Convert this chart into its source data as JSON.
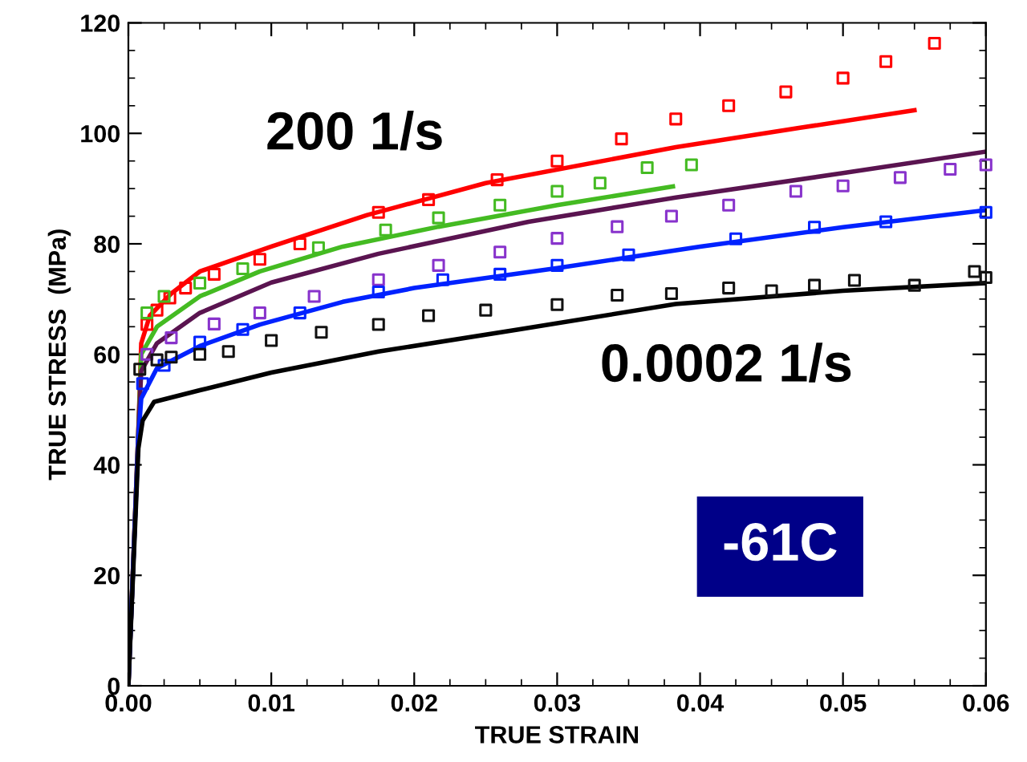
{
  "chart_data": {
    "type": "line",
    "xlabel": "TRUE STRAIN",
    "ylabel": "TRUE STRESS  (MPa)",
    "xlim": [
      0,
      0.06
    ],
    "ylim": [
      0,
      120
    ],
    "xticks": [
      {
        "value": 0,
        "label": "0.00"
      },
      {
        "value": 0.01,
        "label": "0.01"
      },
      {
        "value": 0.02,
        "label": "0.02"
      },
      {
        "value": 0.03,
        "label": "0.03"
      },
      {
        "value": 0.04,
        "label": "0.04"
      },
      {
        "value": 0.05,
        "label": "0.05"
      },
      {
        "value": 0.06,
        "label": "0.06"
      }
    ],
    "yticks": [
      0,
      20,
      40,
      60,
      80,
      100,
      120
    ],
    "grid": false,
    "legend": false,
    "annotations": [
      "200 1/s",
      "0.0002 1/s",
      "-61C"
    ],
    "series": [
      {
        "type": "scatter",
        "marker": "square",
        "color": "#ff0000",
        "x": [
          0.0013,
          0.002,
          0.0029,
          0.004,
          0.006,
          0.0092,
          0.012,
          0.0175,
          0.021,
          0.0258,
          0.03,
          0.0345,
          0.0383,
          0.042,
          0.046,
          0.05,
          0.053,
          0.0564
        ],
        "values": [
          65.4,
          68,
          70.2,
          72,
          74.5,
          77.2,
          80,
          85.7,
          88,
          91.6,
          95,
          99,
          102.6,
          105,
          107.5,
          110,
          113,
          116.3
        ]
      },
      {
        "color": "#ff0000",
        "x": [
          0,
          0.0007,
          0.0009,
          0.0015,
          0.003,
          0.005,
          0.01,
          0.0167,
          0.025,
          0.0383,
          0.047,
          0.055
        ],
        "values": [
          0,
          46,
          62,
          67,
          71,
          75,
          79.5,
          85.2,
          91,
          97.5,
          101,
          104.2
        ]
      },
      {
        "type": "scatter",
        "marker": "square",
        "color": "#44bb22",
        "x": [
          0.0013,
          0.0025,
          0.005,
          0.008,
          0.0133,
          0.018,
          0.0217,
          0.026,
          0.03,
          0.033,
          0.0363,
          0.0394
        ],
        "values": [
          67.5,
          70.5,
          72.9,
          75.5,
          79.3,
          82.5,
          84.7,
          87,
          89.5,
          91,
          93.8,
          94.3
        ]
      },
      {
        "color": "#44bb22",
        "x": [
          0,
          0.0007,
          0.0009,
          0.002,
          0.005,
          0.0092,
          0.015,
          0.0217,
          0.03,
          0.0381
        ],
        "values": [
          0,
          46,
          60,
          65,
          70.5,
          75,
          79.5,
          83.1,
          87,
          90.4
        ]
      },
      {
        "type": "scatter",
        "marker": "square",
        "color": "#8833cc",
        "x": [
          0.0013,
          0.003,
          0.006,
          0.0092,
          0.013,
          0.0175,
          0.0217,
          0.026,
          0.03,
          0.0342,
          0.038,
          0.042,
          0.0467,
          0.05,
          0.054,
          0.0575,
          0.06
        ],
        "values": [
          60,
          63,
          65.5,
          67.5,
          70.5,
          73.5,
          76.1,
          78.5,
          81,
          83.1,
          85,
          87,
          89.5,
          90.5,
          92,
          93.5,
          94.3
        ]
      },
      {
        "color": "#5a1450",
        "x": [
          0,
          0.0007,
          0.0009,
          0.002,
          0.005,
          0.01,
          0.0175,
          0.028,
          0.0383,
          0.05,
          0.06
        ],
        "values": [
          0,
          46,
          57,
          62,
          67.5,
          73,
          78.2,
          84,
          88.4,
          92.8,
          96.7
        ]
      },
      {
        "type": "scatter",
        "marker": "square",
        "color": "#0022ff",
        "x": [
          0.001,
          0.0025,
          0.005,
          0.008,
          0.012,
          0.0175,
          0.022,
          0.026,
          0.03,
          0.035,
          0.0425,
          0.048,
          0.053,
          0.06
        ],
        "values": [
          54.7,
          58,
          62.2,
          64.5,
          67.5,
          71.3,
          73.5,
          74.5,
          76.1,
          78,
          80.9,
          83,
          84,
          85.7
        ]
      },
      {
        "color": "#0022ff",
        "x": [
          0,
          0.0007,
          0.0009,
          0.002,
          0.005,
          0.0092,
          0.015,
          0.02,
          0.03,
          0.04,
          0.05,
          0.06
        ],
        "values": [
          0,
          45,
          52,
          57.5,
          61.5,
          65.4,
          69.5,
          72,
          75.6,
          79.5,
          83,
          86.1
        ]
      },
      {
        "type": "scatter",
        "marker": "square",
        "color": "#111111",
        "x": [
          0.0008,
          0.002,
          0.003,
          0.005,
          0.007,
          0.01,
          0.0135,
          0.0175,
          0.021,
          0.025,
          0.03,
          0.0342,
          0.038,
          0.042,
          0.045,
          0.048,
          0.0508,
          0.055,
          0.0592,
          0.06
        ],
        "values": [
          57.3,
          59,
          59.5,
          60,
          60.5,
          62.5,
          64,
          65.4,
          67,
          68,
          69,
          70.7,
          71,
          72,
          71.5,
          72.5,
          73.4,
          72.5,
          75,
          73.9
        ]
      },
      {
        "color": "#000000",
        "x": [
          0,
          0.0007,
          0.001,
          0.0018,
          0.005,
          0.01,
          0.0175,
          0.0273,
          0.0383,
          0.05,
          0.06
        ],
        "values": [
          0,
          43,
          48,
          51.4,
          53.5,
          56.7,
          60.5,
          64.5,
          69.1,
          71.5,
          72.9
        ]
      }
    ]
  }
}
